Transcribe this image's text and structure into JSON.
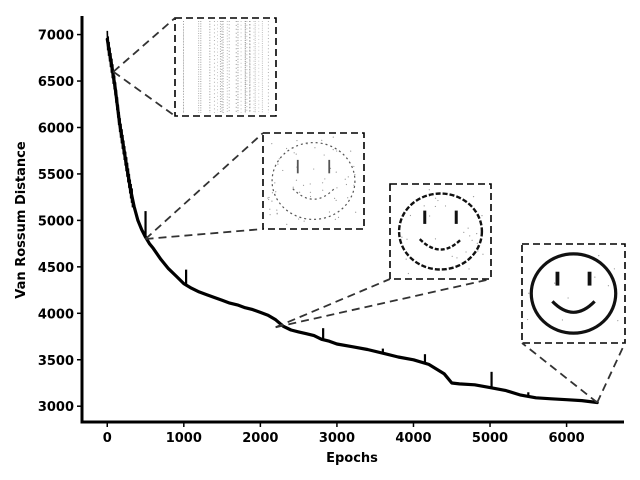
{
  "chart_data": {
    "type": "line",
    "title": "",
    "xlabel": "Epochs",
    "ylabel": "Van Rossum Distance",
    "xlim": [
      -330,
      6750
    ],
    "ylim": [
      2830,
      7200
    ],
    "xticks": [
      0,
      1000,
      2000,
      3000,
      4000,
      5000,
      6000
    ],
    "yticks": [
      3000,
      3500,
      4000,
      4500,
      5000,
      5500,
      6000,
      6500,
      7000
    ],
    "grid": false,
    "legend": "none",
    "line_color": "#000000",
    "series": [
      {
        "x": [
          0,
          20,
          40,
          60,
          80,
          100,
          130,
          160,
          200,
          250,
          300,
          350,
          400,
          450,
          500,
          550,
          600,
          650,
          700,
          800,
          900,
          1000,
          1100,
          1200,
          1300,
          1400,
          1500,
          1600,
          1700,
          1800,
          1900,
          2000,
          2100,
          2200,
          2300,
          2400,
          2500,
          2600,
          2700,
          2800,
          2900,
          3000,
          3200,
          3400,
          3600,
          3800,
          4000,
          4200,
          4400,
          4500,
          4600,
          4800,
          5000,
          5200,
          5400,
          5600,
          5800,
          6000,
          6200,
          6400
        ],
        "y": [
          6950,
          6850,
          6750,
          6650,
          6550,
          6450,
          6250,
          6050,
          5850,
          5600,
          5350,
          5150,
          5000,
          4900,
          4820,
          4750,
          4700,
          4640,
          4580,
          4480,
          4400,
          4320,
          4270,
          4230,
          4200,
          4170,
          4140,
          4110,
          4090,
          4060,
          4040,
          4010,
          3980,
          3930,
          3860,
          3820,
          3800,
          3780,
          3760,
          3720,
          3700,
          3670,
          3640,
          3610,
          3570,
          3530,
          3500,
          3450,
          3350,
          3250,
          3240,
          3230,
          3200,
          3170,
          3120,
          3090,
          3080,
          3070,
          3060,
          3040
        ]
      }
    ],
    "spikes": [
      {
        "x": 500,
        "y": 5100
      },
      {
        "x": 1030,
        "y": 4470
      },
      {
        "x": 2820,
        "y": 3840
      },
      {
        "x": 3600,
        "y": 3620
      },
      {
        "x": 4150,
        "y": 3560
      },
      {
        "x": 5020,
        "y": 3370
      },
      {
        "x": 5500,
        "y": 3150
      }
    ],
    "annotations": [
      {
        "name": "inset-1",
        "points_to": {
          "x": 80,
          "y": 6600
        },
        "content": "noise"
      },
      {
        "name": "inset-2",
        "points_to": {
          "x": 500,
          "y": 4800
        },
        "content": "smiley-faint"
      },
      {
        "name": "inset-3",
        "points_to": {
          "x": 2200,
          "y": 3850
        },
        "content": "smiley-forming"
      },
      {
        "name": "inset-4",
        "points_to": {
          "x": 6400,
          "y": 3040
        },
        "content": "smiley-clear"
      }
    ]
  }
}
